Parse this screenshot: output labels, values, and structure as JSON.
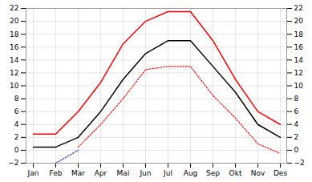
{
  "chart_data": {
    "type": "line",
    "categories": [
      "Jan",
      "Feb",
      "Mar",
      "Apr",
      "Mai",
      "Jun",
      "Jul",
      "Aug",
      "Sep",
      "Okt",
      "Nov",
      "Des"
    ],
    "series": [
      {
        "color": "#ff0000",
        "line_style": "solid",
        "values": [
          2.5,
          2.5,
          6.0,
          10.5,
          16.5,
          20.0,
          21.5,
          21.5,
          17.0,
          11.0,
          6.0,
          4.0
        ]
      },
      {
        "color": "#000000",
        "line_style": "solid",
        "values": [
          0.5,
          0.5,
          2.0,
          6.0,
          11.0,
          15.0,
          17.0,
          17.0,
          13.0,
          9.0,
          4.0,
          2.0
        ]
      },
      {
        "color": "#ff0000",
        "line_style": "dotted",
        "values": [
          null,
          null,
          0.5,
          4.0,
          8.0,
          12.5,
          13.0,
          13.0,
          8.5,
          5.0,
          1.0,
          -0.5
        ]
      },
      {
        "color": "#2222cc",
        "line_style": "dotted",
        "values": [
          -2.0,
          -2.0,
          0.0,
          null,
          null,
          null,
          null,
          null,
          null,
          null,
          null,
          null
        ]
      }
    ],
    "ylim": [
      -2,
      22
    ],
    "yticks": [
      -2,
      0,
      2,
      4,
      6,
      8,
      10,
      12,
      14,
      16,
      18,
      20,
      22
    ],
    "grid": true
  }
}
